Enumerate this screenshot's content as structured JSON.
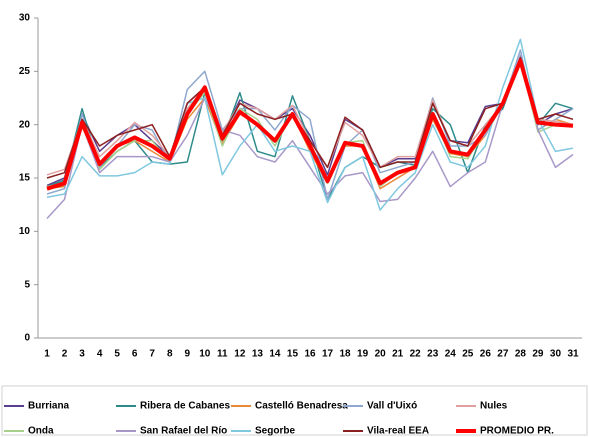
{
  "chart_data": {
    "type": "line",
    "categories": [
      "1",
      "2",
      "3",
      "4",
      "5",
      "6",
      "7",
      "8",
      "9",
      "10",
      "11",
      "12",
      "13",
      "14",
      "15",
      "16",
      "17",
      "18",
      "19",
      "20",
      "21",
      "22",
      "23",
      "24",
      "25",
      "26",
      "27",
      "28",
      "29",
      "30",
      "31"
    ],
    "ylim": [
      0,
      30
    ],
    "yticks": [
      0,
      5,
      10,
      15,
      20,
      25,
      30
    ],
    "legend": "bottom",
    "series": [
      {
        "name": "Burriana",
        "color": "#5b3e8f",
        "values": [
          14.3,
          15,
          21,
          17.5,
          19,
          20,
          18.5,
          17,
          22,
          23.5,
          19,
          22.3,
          21.5,
          20.5,
          21.5,
          19,
          15.3,
          20.5,
          19.5,
          16,
          16.8,
          16.8,
          22,
          18.5,
          18.3,
          21.7,
          22,
          26.3,
          20,
          21,
          21.5
        ]
      },
      {
        "name": "Ribera de Cabanes",
        "color": "#2e8b8b",
        "values": [
          14.2,
          14.8,
          21.5,
          16,
          17.5,
          18.5,
          16.5,
          16.3,
          16.5,
          23,
          18.5,
          23,
          17.5,
          17,
          22.7,
          18.5,
          13,
          16,
          17,
          16,
          16.5,
          16.2,
          21.5,
          20,
          15.5,
          20,
          21.5,
          26,
          20,
          22,
          21.5
        ]
      },
      {
        "name": "Castelló Benadresa",
        "color": "#e8883a",
        "values": [
          14,
          14.2,
          19.8,
          16.2,
          18,
          18.5,
          17.5,
          16.5,
          20.5,
          22.5,
          18.2,
          21,
          20,
          18.5,
          21,
          17.5,
          14.5,
          18,
          18,
          14,
          15,
          16,
          20.5,
          17.3,
          17,
          19,
          22,
          26,
          19.5,
          20.5,
          20
        ]
      },
      {
        "name": "Vall d'Uixó",
        "color": "#8fa8d0",
        "values": [
          13.5,
          14,
          21,
          16,
          18,
          20,
          19.5,
          16.5,
          23.3,
          25,
          19.5,
          21.5,
          21.5,
          19.5,
          21.8,
          20.5,
          13,
          18,
          19.5,
          15.5,
          16,
          16.5,
          22.5,
          18,
          18,
          19,
          22,
          27,
          19.5,
          20.5,
          21.5
        ]
      },
      {
        "name": "Nules",
        "color": "#e0a0a0",
        "values": [
          15.3,
          15.8,
          20.5,
          17,
          18.5,
          20.2,
          19,
          17,
          21.5,
          23.5,
          19.3,
          22,
          21.5,
          20.5,
          21.8,
          18.5,
          16,
          20.2,
          19,
          16,
          17,
          17,
          22.3,
          18.5,
          18,
          20,
          22,
          26.2,
          20.5,
          20.3,
          20
        ]
      },
      {
        "name": "Onda",
        "color": "#a8d08d",
        "values": [
          14.2,
          14.5,
          20,
          15.8,
          17.5,
          18.5,
          18.5,
          16.5,
          21,
          23,
          18,
          21.5,
          20.5,
          18,
          21,
          18.3,
          14.5,
          18.3,
          18.5,
          14.2,
          15.5,
          16,
          21,
          17,
          16.8,
          19.5,
          22,
          26,
          19.3,
          20,
          20
        ]
      },
      {
        "name": "San Rafael del Río",
        "color": "#a898c8",
        "values": [
          11.2,
          13,
          20,
          15.5,
          17,
          17,
          17,
          16.5,
          19,
          22.5,
          19.5,
          19,
          17,
          16.5,
          18.5,
          16,
          13.5,
          15.2,
          15.5,
          12.8,
          13,
          15,
          17.5,
          14.2,
          15.5,
          16.5,
          22,
          26.5,
          19.5,
          16,
          17.2
        ]
      },
      {
        "name": "Segorbe",
        "color": "#80c8e0",
        "values": [
          13.2,
          13.5,
          17,
          15.2,
          15.2,
          15.5,
          16.5,
          16.3,
          22,
          22.5,
          15.3,
          18,
          20,
          17.5,
          18,
          17.5,
          12.7,
          16,
          17,
          12,
          14,
          15.5,
          20,
          16.5,
          16,
          18,
          23.5,
          28,
          20.5,
          17.5,
          17.8
        ]
      },
      {
        "name": "Vila-real EEA",
        "color": "#8b2020",
        "values": [
          15,
          15.5,
          20.5,
          18,
          19,
          19.5,
          20,
          17,
          22,
          23.5,
          19,
          22,
          21,
          20.5,
          21,
          18.5,
          16,
          20.7,
          19.5,
          16,
          16.5,
          16.5,
          22,
          18.5,
          18,
          21.5,
          22,
          26.3,
          20.5,
          21,
          20.5
        ]
      },
      {
        "name": "PROMEDIO PR.",
        "color": "#ff0000",
        "values": [
          14,
          14.5,
          20.2,
          16.3,
          18,
          18.8,
          18,
          16.8,
          21,
          23.5,
          18.7,
          21.2,
          20,
          18.5,
          21,
          18,
          14.7,
          18.3,
          18,
          14.5,
          15.5,
          16,
          21,
          17.5,
          17.2,
          19.5,
          22,
          26,
          20.2,
          20,
          19.9
        ]
      }
    ]
  }
}
